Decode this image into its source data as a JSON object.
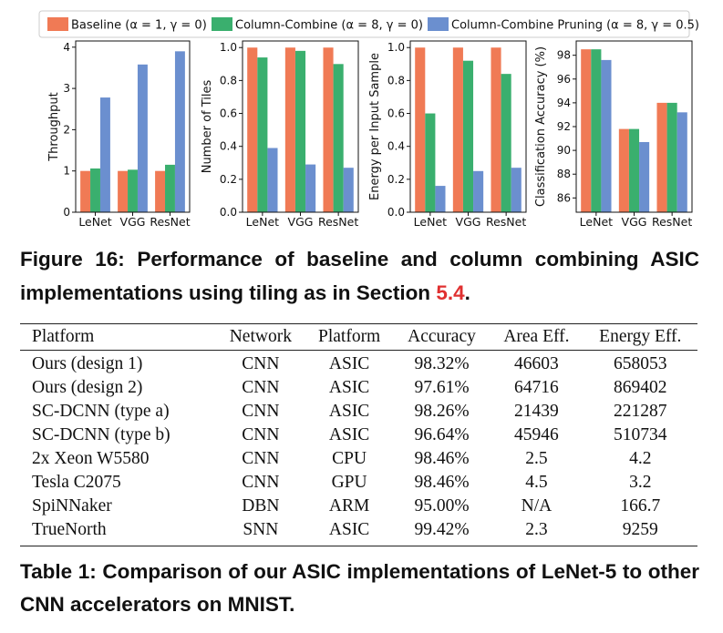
{
  "legend": [
    {
      "label": "Baseline (α = 1, γ = 0)",
      "color": "#f07a55"
    },
    {
      "label": "Column-Combine (α = 8, γ = 0)",
      "color": "#3aaf6e"
    },
    {
      "label": "Column-Combine Pruning (α = 8, γ = 0.5)",
      "color": "#6b8fcf"
    }
  ],
  "chart_data": [
    {
      "type": "bar",
      "categories": [
        "LeNet",
        "VGG",
        "ResNet"
      ],
      "ylabel": "Throughput",
      "ylim": [
        0,
        4.15
      ],
      "yticks": [
        0,
        1,
        2,
        3,
        4
      ],
      "tick_labels": [
        "0",
        "1",
        "2",
        "3",
        "4"
      ],
      "series": [
        {
          "values": [
            1.0,
            1.0,
            1.0
          ]
        },
        {
          "values": [
            1.06,
            1.03,
            1.15
          ]
        },
        {
          "values": [
            2.78,
            3.58,
            3.9
          ]
        }
      ]
    },
    {
      "type": "bar",
      "categories": [
        "LeNet",
        "VGG",
        "ResNet"
      ],
      "ylabel": "Number of Tiles",
      "ylim": [
        0,
        1.04
      ],
      "yticks": [
        0.0,
        0.2,
        0.4,
        0.6,
        0.8,
        1.0
      ],
      "tick_labels": [
        "0.0",
        "0.2",
        "0.4",
        "0.6",
        "0.8",
        "1.0"
      ],
      "series": [
        {
          "values": [
            1.0,
            1.0,
            1.0
          ]
        },
        {
          "values": [
            0.94,
            0.98,
            0.9
          ]
        },
        {
          "values": [
            0.39,
            0.29,
            0.27
          ]
        }
      ]
    },
    {
      "type": "bar",
      "categories": [
        "LeNet",
        "VGG",
        "ResNet"
      ],
      "ylabel": "Energy per Input Sample",
      "ylim": [
        0,
        1.04
      ],
      "yticks": [
        0.0,
        0.2,
        0.4,
        0.6,
        0.8,
        1.0
      ],
      "tick_labels": [
        "0.0",
        "0.2",
        "0.4",
        "0.6",
        "0.8",
        "1.0"
      ],
      "series": [
        {
          "values": [
            1.0,
            1.0,
            1.0
          ]
        },
        {
          "values": [
            0.6,
            0.92,
            0.84
          ]
        },
        {
          "values": [
            0.16,
            0.25,
            0.27
          ]
        }
      ]
    },
    {
      "type": "bar",
      "categories": [
        "LeNet",
        "VGG",
        "ResNet"
      ],
      "ylabel": "Classification Accuracy (%)",
      "ylim": [
        84.8,
        99.2
      ],
      "yticks": [
        86,
        88,
        90,
        92,
        94,
        96,
        98
      ],
      "tick_labels": [
        "86",
        "88",
        "90",
        "92",
        "94",
        "96",
        "98"
      ],
      "series": [
        {
          "values": [
            98.5,
            91.8,
            94.0
          ]
        },
        {
          "values": [
            98.5,
            91.8,
            94.0
          ]
        },
        {
          "values": [
            97.6,
            90.7,
            93.2
          ]
        }
      ]
    }
  ],
  "figure_caption": {
    "text": "Figure 16: Performance of baseline and column combining ASIC implementations using tiling as in Section ",
    "ref": "5.4",
    "end": "."
  },
  "table": {
    "headers": [
      "Platform",
      "Network",
      "Platform",
      "Accuracy",
      "Area Eff.",
      "Energy Eff."
    ],
    "rows": [
      [
        "Ours (design 1)",
        "CNN",
        "ASIC",
        "98.32%",
        "46603",
        "658053"
      ],
      [
        "Ours (design 2)",
        "CNN",
        "ASIC",
        "97.61%",
        "64716",
        "869402"
      ],
      [
        "SC-DCNN (type a)",
        "CNN",
        "ASIC",
        "98.26%",
        "21439",
        "221287"
      ],
      [
        "SC-DCNN (type b)",
        "CNN",
        "ASIC",
        "96.64%",
        "45946",
        "510734"
      ],
      [
        "2x Xeon W5580",
        "CNN",
        "CPU",
        "98.46%",
        "2.5",
        "4.2"
      ],
      [
        "Tesla C2075",
        "CNN",
        "GPU",
        "98.46%",
        "4.5",
        "3.2"
      ],
      [
        "SpiNNaker",
        "DBN",
        "ARM",
        "95.00%",
        "N/A",
        "166.7"
      ],
      [
        "TrueNorth",
        "SNN",
        "ASIC",
        "99.42%",
        "2.3",
        "9259"
      ]
    ]
  },
  "table_caption": "Table 1: Comparison of our ASIC implementations of LeNet-5 to other CNN accelerators on MNIST."
}
